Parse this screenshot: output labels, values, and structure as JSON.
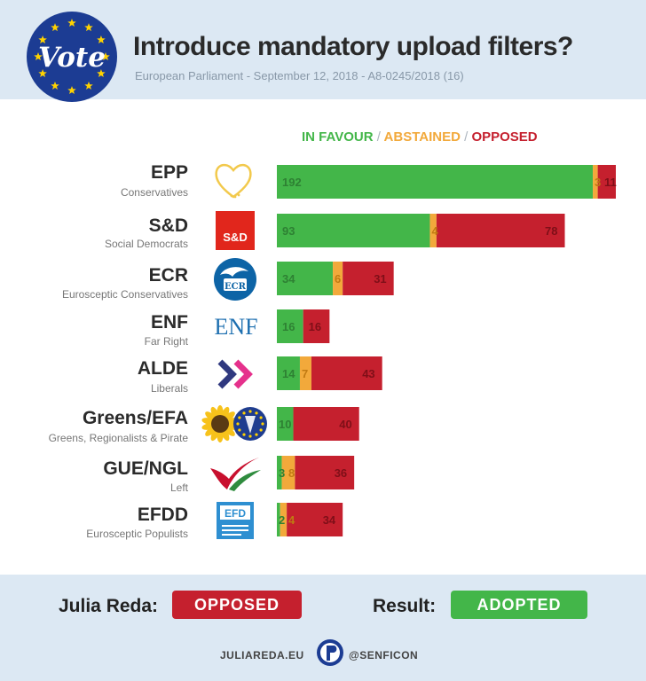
{
  "header": {
    "logo_text": "Vote",
    "title": "Introduce mandatory upload filters?",
    "subtitle": "European Parliament - September 12, 2018 - A8-0245/2018 (16)"
  },
  "legend": {
    "in_favour": "IN FAVOUR",
    "abstained": "ABSTAINED",
    "opposed": "OPPOSED",
    "separator": "/"
  },
  "colors": {
    "in_favour": "#43b649",
    "abstained": "#f2a93b",
    "opposed": "#c5202e",
    "header_bg": "#dce8f3",
    "logo_blue": "#1c3c93",
    "star_yellow": "#ffd200"
  },
  "chart_data": {
    "type": "bar",
    "orientation": "horizontal",
    "stacked": true,
    "categories": [
      "EPP",
      "S&D",
      "ECR",
      "ENF",
      "ALDE",
      "Greens/EFA",
      "GUE/NGL",
      "EFDD"
    ],
    "category_descriptions": [
      "Conservatives",
      "Social Democrats",
      "Eurosceptic Conservatives",
      "Far Right",
      "Liberals",
      "Greens, Regionalists & Pirate",
      "Left",
      "Eurosceptic Populists"
    ],
    "series": [
      {
        "name": "IN FAVOUR",
        "values": [
          192,
          93,
          34,
          16,
          14,
          10,
          3,
          2
        ]
      },
      {
        "name": "ABSTAINED",
        "values": [
          3,
          4,
          6,
          0,
          7,
          0,
          8,
          4
        ]
      },
      {
        "name": "OPPOSED",
        "values": [
          11,
          78,
          31,
          16,
          43,
          40,
          36,
          34
        ]
      }
    ],
    "value_labels": [
      [
        "192",
        "3",
        "11"
      ],
      [
        "93",
        "4",
        "78"
      ],
      [
        "34",
        "6",
        "31"
      ],
      [
        "16",
        "",
        "16"
      ],
      [
        "14",
        "7",
        "43"
      ],
      [
        "10",
        "",
        "40"
      ],
      [
        "3",
        "8",
        "36"
      ],
      [
        "2",
        "4",
        "34"
      ]
    ],
    "legend_position": "top",
    "grid": false
  },
  "party_logos": [
    "heart-icon",
    "sd-logo",
    "ecr-logo",
    "enf-logo",
    "alde-chevrons-icon",
    "sunflower-icon",
    "gue-flag-icon",
    "efdd-logo"
  ],
  "logo_texts": {
    "sd": "S&D",
    "ecr": "ECR",
    "enf": "ENF",
    "efdd": "EFD"
  },
  "footer": {
    "julia_label": "Julia Reda:",
    "julia_vote": "OPPOSED",
    "result_label": "Result:",
    "result_value": "ADOPTED",
    "website": "JULIAREDA.EU",
    "handle": "@SENFICON"
  }
}
